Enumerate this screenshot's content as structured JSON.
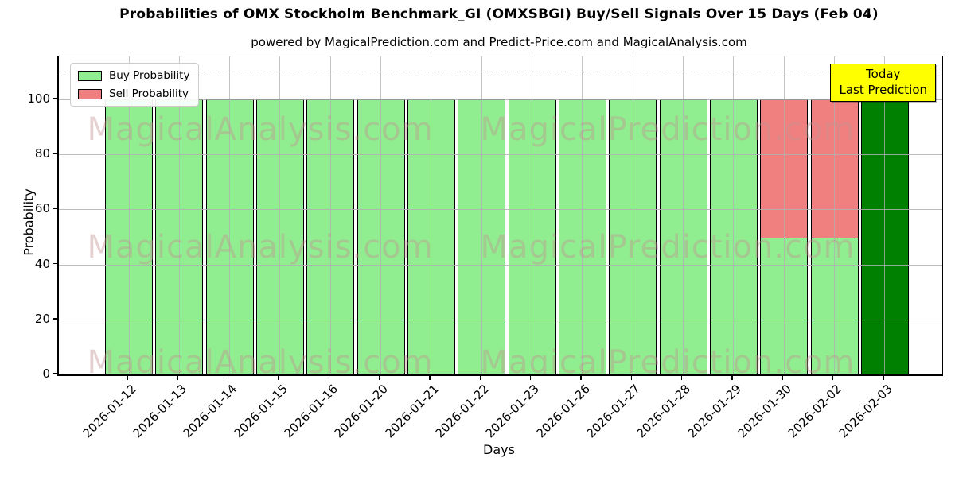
{
  "chart_data": {
    "type": "bar",
    "stacked": true,
    "title": "Probabilities of OMX Stockholm Benchmark_GI (OMXSBGI) Buy/Sell Signals Over 15 Days (Feb 04)",
    "subtitle": "powered by MagicalPrediction.com and Predict-Price.com and MagicalAnalysis.com",
    "xlabel": "Days",
    "ylabel": "Probability",
    "ylim": [
      0,
      115.6
    ],
    "yticks": [
      0,
      20,
      40,
      60,
      80,
      100
    ],
    "dashed_line_y": 110,
    "grid": true,
    "legend_position": "upper-left",
    "categories": [
      "2026-01-12",
      "2026-01-13",
      "2026-01-14",
      "2026-01-15",
      "2026-01-16",
      "2026-01-20",
      "2026-01-21",
      "2026-01-22",
      "2026-01-23",
      "2026-01-26",
      "2026-01-27",
      "2026-01-28",
      "2026-01-29",
      "2026-01-30",
      "2026-02-02",
      "2026-02-03"
    ],
    "series": [
      {
        "name": "Buy Probability",
        "color": "#90EE90",
        "values": [
          100,
          100,
          100,
          100,
          100,
          100,
          100,
          100,
          100,
          100,
          100,
          100,
          100,
          50,
          50,
          100
        ]
      },
      {
        "name": "Sell Probability",
        "color": "#F08080",
        "values": [
          0,
          0,
          0,
          0,
          0,
          0,
          0,
          0,
          0,
          0,
          0,
          0,
          0,
          50,
          50,
          0
        ]
      }
    ],
    "today_bar": {
      "category": "2026-02-03",
      "index": 15,
      "color": "#008000"
    },
    "annotation": {
      "line1": "Today",
      "line2": "Last Prediction",
      "bg_color": "#FFFF00"
    },
    "watermarks": {
      "left": "MagicalAnalysis.com",
      "right": "MagicalPrediction.com"
    },
    "colors": {
      "bar_edge": "#000000",
      "dashed_line": "#7a7a7a",
      "grid": "#b0b0b0",
      "annotation_bg": "#FFFF00"
    }
  }
}
